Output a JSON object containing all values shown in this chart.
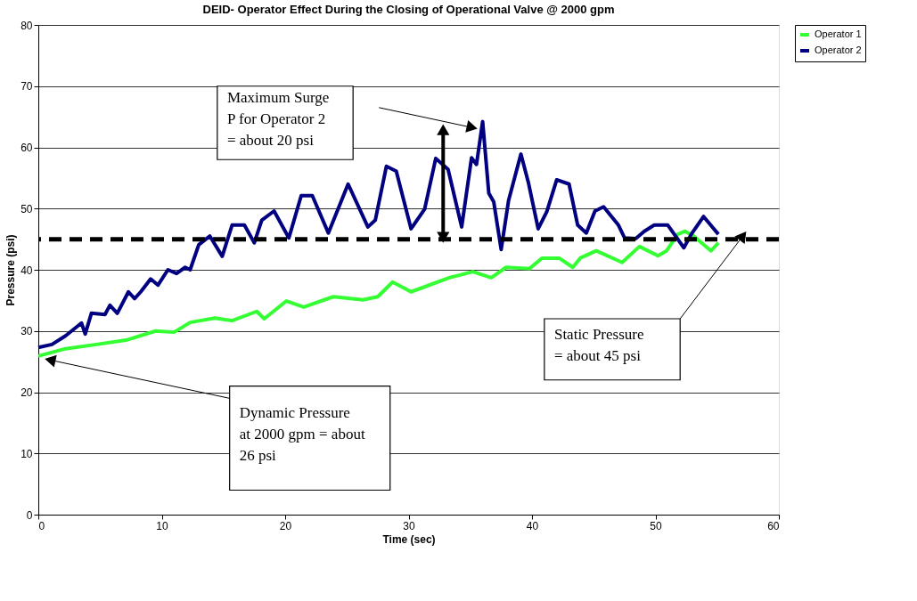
{
  "chart_data": {
    "type": "line",
    "title": "DEID- Operator Effect During the Closing of Operational Valve @ 2000 gpm",
    "xlabel": "Time (sec)",
    "ylabel": "Pressure (psi)",
    "xlim": [
      0,
      60
    ],
    "xticks": [
      0,
      10,
      20,
      30,
      40,
      50,
      60
    ],
    "ylim": [
      0,
      80
    ],
    "yticks": [
      0,
      10,
      20,
      30,
      40,
      50,
      60,
      70,
      80
    ],
    "grid": "y",
    "legend": "right",
    "marker": "none",
    "line_style": "solid",
    "series": [
      {
        "name": "Operator 1",
        "color": "#33ff33",
        "x": [
          0,
          2.2,
          4.7,
          7.1,
          9.5,
          11,
          12.3,
          14.3,
          15.7,
          17.7,
          18.3,
          20.1,
          21.5,
          23.9,
          26.3,
          27.5,
          28.7,
          30.2,
          33.3,
          35.2,
          36.7,
          37.9,
          39.8,
          40.8,
          42.2,
          43.3,
          43.9,
          45.2,
          47.3,
          48.7,
          50.2,
          50.9,
          51.8,
          52.4,
          53.1,
          54.5,
          55.1
        ],
        "values": [
          25.9,
          27.1,
          27.8,
          28.5,
          30,
          29.8,
          31.4,
          32.1,
          31.7,
          33.2,
          32,
          34.9,
          33.9,
          35.6,
          35.1,
          35.6,
          38,
          36.4,
          38.7,
          39.7,
          38.7,
          40.4,
          40.2,
          41.9,
          41.9,
          40.4,
          41.9,
          43.1,
          41.2,
          43.8,
          42.3,
          43.1,
          45.8,
          46.3,
          45.5,
          43.1,
          44.4
        ]
      },
      {
        "name": "Operator 2",
        "color": "#000080",
        "x": [
          0,
          1.1,
          2.2,
          3.5,
          3.8,
          4.3,
          5.4,
          5.8,
          6.4,
          7.3,
          7.8,
          8.3,
          9.1,
          9.7,
          10.5,
          11.2,
          11.9,
          12.3,
          13,
          13.9,
          14.9,
          15.7,
          16.7,
          17.5,
          18.1,
          19.1,
          20.3,
          21.3,
          22.2,
          23.5,
          25.1,
          26.7,
          27.3,
          28.2,
          29,
          30.2,
          31.3,
          32.2,
          33.2,
          34.3,
          35.1,
          35.5,
          36,
          36.5,
          36.9,
          37.5,
          38.1,
          39.1,
          39.7,
          40.5,
          41.2,
          42,
          43,
          43.7,
          44.4,
          45.1,
          45.8,
          47,
          47.5,
          48.4,
          49.1,
          49.9,
          51,
          52.3,
          52.9,
          53.9,
          55.1
        ],
        "values": [
          27.3,
          27.8,
          29.2,
          31.3,
          29.5,
          32.9,
          32.7,
          34.2,
          32.9,
          36.4,
          35.3,
          36.4,
          38.5,
          37.5,
          40,
          39.4,
          40.4,
          40,
          44.1,
          45.5,
          42.2,
          47.3,
          47.3,
          44.4,
          48.1,
          49.6,
          45.2,
          52.1,
          52.1,
          46,
          54,
          47,
          48.1,
          56.9,
          56.1,
          46.7,
          49.9,
          58.2,
          56.4,
          47,
          58.3,
          57.2,
          64.2,
          52.5,
          51.1,
          43.3,
          51.3,
          58.9,
          54.3,
          46.7,
          49.5,
          54.7,
          54,
          47.3,
          46,
          49.6,
          50.3,
          47.3,
          45.2,
          45.1,
          46.3,
          47.3,
          47.3,
          43.6,
          45.8,
          48.7,
          45.8
        ]
      }
    ],
    "ref_lines": [
      {
        "axis": "y",
        "value": 45,
        "color": "#000000",
        "line_style": "dashed"
      }
    ],
    "annotations": [
      "Maximum Surge\nP for Operator 2\n= about 20 psi",
      "Dynamic Pressure\nat 2000 gpm = about\n26 psi",
      "Static Pressure\n= about 45 psi"
    ]
  }
}
